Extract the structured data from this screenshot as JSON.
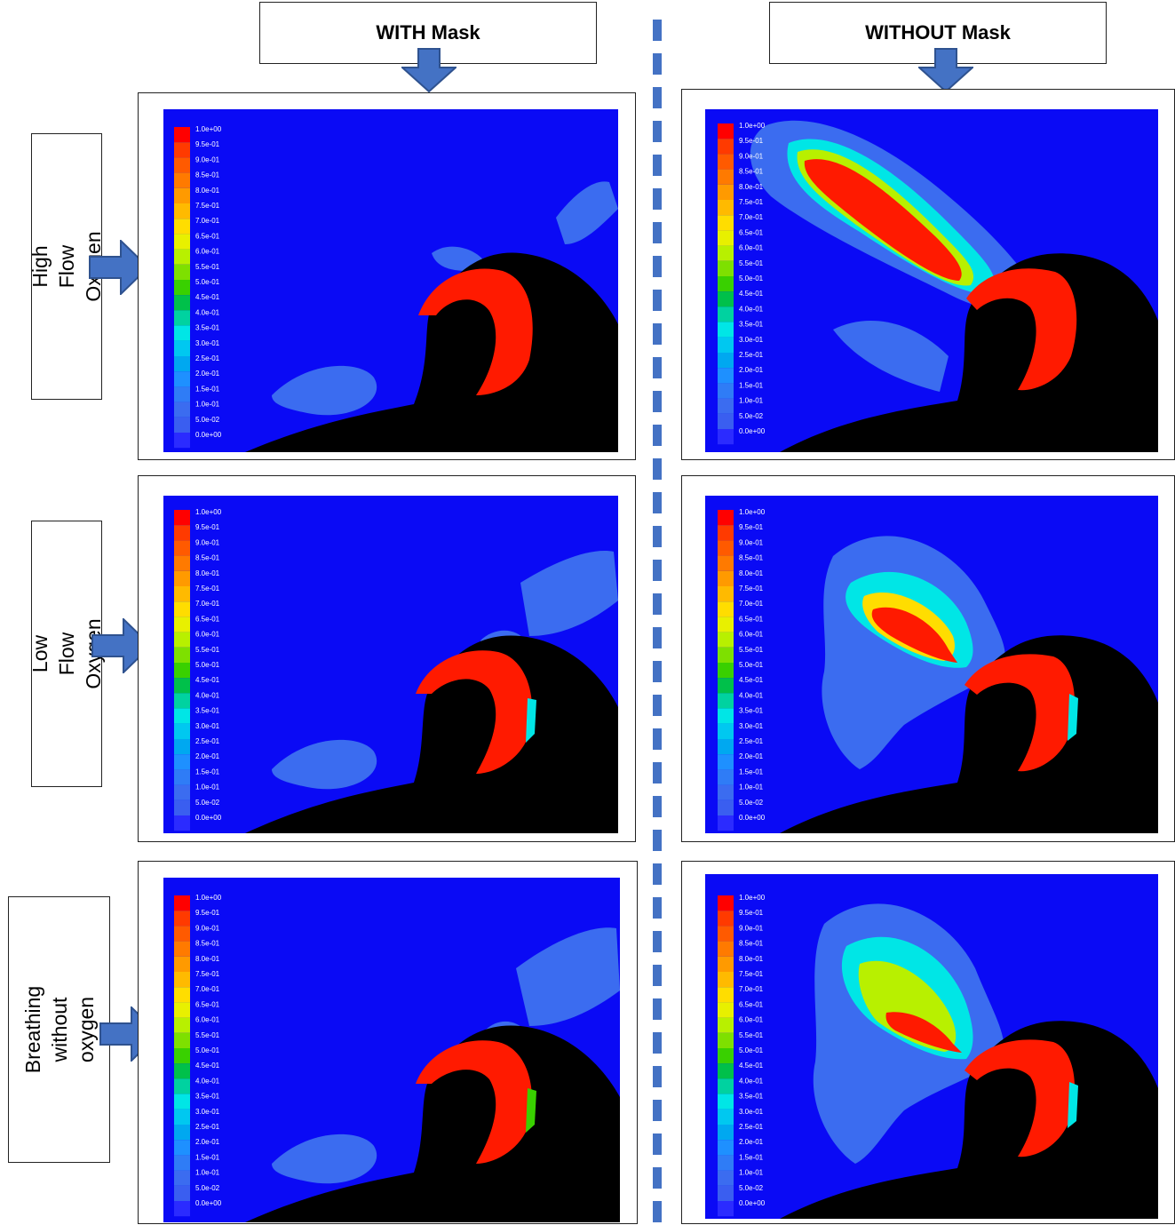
{
  "columns": [
    {
      "label": "WITH Mask"
    },
    {
      "label": "WITHOUT Mask"
    }
  ],
  "rows": [
    {
      "label": "High Flow Oxygen"
    },
    {
      "label": "Low Flow Oxygen"
    },
    {
      "label": "Breathing without\noxygen"
    }
  ],
  "legend": {
    "labels_a": [
      "1.0e+00",
      "9.5e-01",
      "9.0e-01",
      "8.5e-01",
      "8.0e-01",
      "7.5e-01",
      "7.0e-01",
      "6.5e-01",
      "6.0e-01",
      "5.5e-01",
      "5.0e-01",
      "4.5e-01",
      "4.0e-01",
      "3.5e-01",
      "3.0e-01",
      "2.5e-01",
      "2.0e-01",
      "1.5e-01",
      "1.0e-01",
      "5.0e-02",
      "0.0e+00"
    ],
    "labels_b": [
      "1.0e+00",
      "9.5e-01",
      "9.0e-01",
      "8.5e-01",
      "8.0e-01",
      "7.5e-01",
      "7.0e-01",
      "6.5e-01",
      "6.0e-01",
      "5.5e-01",
      "5.0e-01",
      "4.5e-01",
      "4.0e-01",
      "3.5e-01",
      "3.0e-01",
      "2.5e-01",
      "2.0e-01",
      "1.5e-01",
      "1.0e-01",
      "5.0e-02",
      "0.0e+00"
    ],
    "colors": [
      "#ff0000",
      "#ff3a00",
      "#ff5a00",
      "#ff7a00",
      "#ff9a00",
      "#ffba00",
      "#ffdd00",
      "#e8f000",
      "#b8f000",
      "#7ee000",
      "#39d000",
      "#00c04a",
      "#00d2a0",
      "#00e6e6",
      "#00c8f0",
      "#00a8f0",
      "#1e90ff",
      "#2f7cf6",
      "#3b6cf0",
      "#3a5ef0",
      "#2b2bff"
    ]
  },
  "colors": {
    "field_bg": "#0a0af5",
    "head": "#000000",
    "mask": "#ff1a00",
    "arrow_fill": "#4472c4",
    "arrow_stroke": "#2f528f",
    "divider": "#4472c4"
  }
}
